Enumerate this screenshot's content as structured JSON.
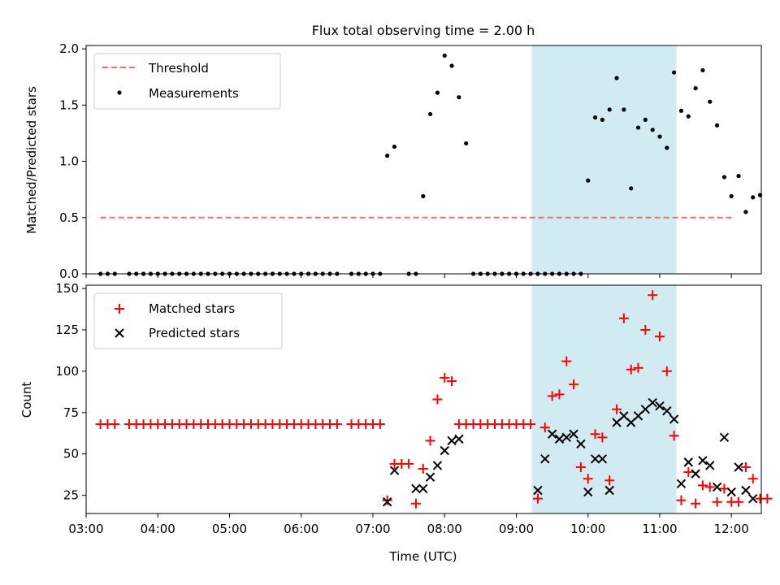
{
  "figure": {
    "title": "Flux total observing time = 2.00 h"
  },
  "colors": {
    "threshold": "#ff6b6b",
    "span": "#add8e6",
    "matched": "#ff0000",
    "predicted": "#000000",
    "measurement": "#000000"
  },
  "chart_data": [
    {
      "type": "scatter",
      "ylabel": "Matched/Predicted stars",
      "xlim": [
        "03:00",
        "12:25"
      ],
      "ylim": [
        0,
        2.03
      ],
      "yticks": [
        "0.0",
        "0.5",
        "1.0",
        "1.5",
        "2.0"
      ],
      "legend": {
        "placement": "top-left",
        "entries": [
          "Threshold",
          "Measurements"
        ]
      },
      "highlight_span": [
        "09:13",
        "11:14"
      ],
      "threshold": {
        "name": "Threshold",
        "y": 0.5,
        "x": [
          "03:12",
          "12:00"
        ]
      },
      "series": [
        {
          "name": "Measurements",
          "points": [
            [
              "03:12",
              0
            ],
            [
              "03:18",
              0
            ],
            [
              "03:24",
              0
            ],
            [
              "03:36",
              0
            ],
            [
              "03:42",
              0
            ],
            [
              "03:48",
              0
            ],
            [
              "03:54",
              0
            ],
            [
              "04:00",
              0
            ],
            [
              "04:06",
              0
            ],
            [
              "04:12",
              0
            ],
            [
              "04:18",
              0
            ],
            [
              "04:24",
              0
            ],
            [
              "04:30",
              0
            ],
            [
              "04:36",
              0
            ],
            [
              "04:42",
              0
            ],
            [
              "04:48",
              0
            ],
            [
              "04:54",
              0
            ],
            [
              "05:00",
              0
            ],
            [
              "05:06",
              0
            ],
            [
              "05:12",
              0
            ],
            [
              "05:18",
              0
            ],
            [
              "05:24",
              0
            ],
            [
              "05:30",
              0
            ],
            [
              "05:36",
              0
            ],
            [
              "05:42",
              0
            ],
            [
              "05:48",
              0
            ],
            [
              "05:54",
              0
            ],
            [
              "06:00",
              0
            ],
            [
              "06:06",
              0
            ],
            [
              "06:12",
              0
            ],
            [
              "06:18",
              0
            ],
            [
              "06:24",
              0
            ],
            [
              "06:30",
              0
            ],
            [
              "06:42",
              0
            ],
            [
              "06:48",
              0
            ],
            [
              "06:54",
              0
            ],
            [
              "07:00",
              0
            ],
            [
              "07:06",
              0
            ],
            [
              "07:12",
              1.05
            ],
            [
              "07:18",
              1.13
            ],
            [
              "07:30",
              0
            ],
            [
              "07:36",
              0
            ],
            [
              "07:42",
              0.69
            ],
            [
              "07:48",
              1.42
            ],
            [
              "07:54",
              1.61
            ],
            [
              "08:00",
              1.94
            ],
            [
              "08:06",
              1.85
            ],
            [
              "08:12",
              1.57
            ],
            [
              "08:18",
              1.16
            ],
            [
              "08:24",
              0
            ],
            [
              "08:30",
              0
            ],
            [
              "08:36",
              0
            ],
            [
              "08:42",
              0
            ],
            [
              "08:48",
              0
            ],
            [
              "08:54",
              0
            ],
            [
              "09:00",
              0
            ],
            [
              "09:06",
              0
            ],
            [
              "09:12",
              0
            ],
            [
              "09:18",
              0
            ],
            [
              "09:24",
              0
            ],
            [
              "09:30",
              0
            ],
            [
              "09:36",
              0
            ],
            [
              "09:42",
              0
            ],
            [
              "09:48",
              0
            ],
            [
              "09:54",
              0
            ],
            [
              "10:00",
              0.83
            ],
            [
              "10:06",
              1.39
            ],
            [
              "10:12",
              1.37
            ],
            [
              "10:18",
              1.46
            ],
            [
              "10:24",
              1.74
            ],
            [
              "10:30",
              1.46
            ],
            [
              "10:36",
              0.76
            ],
            [
              "10:42",
              1.3
            ],
            [
              "10:48",
              1.37
            ],
            [
              "10:54",
              1.28
            ],
            [
              "11:00",
              1.22
            ],
            [
              "11:06",
              1.12
            ],
            [
              "11:12",
              1.79
            ],
            [
              "11:18",
              1.45
            ],
            [
              "11:24",
              1.4
            ],
            [
              "11:30",
              1.65
            ],
            [
              "11:36",
              1.81
            ],
            [
              "11:42",
              1.53
            ],
            [
              "11:48",
              1.32
            ],
            [
              "11:54",
              0.86
            ],
            [
              "12:00",
              0.69
            ],
            [
              "12:06",
              0.87
            ],
            [
              "12:12",
              0.55
            ],
            [
              "12:18",
              0.68
            ],
            [
              "12:24",
              0.7
            ]
          ]
        }
      ]
    },
    {
      "type": "scatter",
      "xlabel": "Time (UTC)",
      "ylabel": "Count",
      "xlim": [
        "03:00",
        "12:25"
      ],
      "ylim": [
        14,
        152
      ],
      "yticks": [
        "25",
        "50",
        "75",
        "100",
        "125",
        "150"
      ],
      "xticks": [
        "03:00",
        "04:00",
        "05:00",
        "06:00",
        "07:00",
        "08:00",
        "09:00",
        "10:00",
        "11:00",
        "12:00"
      ],
      "legend": {
        "placement": "top-left",
        "entries": [
          "Matched stars",
          "Predicted stars"
        ]
      },
      "highlight_span": [
        "09:13",
        "11:14"
      ],
      "series": [
        {
          "name": "Matched stars",
          "marker": "plus",
          "points": [
            [
              "03:12",
              68
            ],
            [
              "03:18",
              68
            ],
            [
              "03:24",
              68
            ],
            [
              "03:36",
              68
            ],
            [
              "03:42",
              68
            ],
            [
              "03:48",
              68
            ],
            [
              "03:54",
              68
            ],
            [
              "04:00",
              68
            ],
            [
              "04:06",
              68
            ],
            [
              "04:12",
              68
            ],
            [
              "04:18",
              68
            ],
            [
              "04:24",
              68
            ],
            [
              "04:30",
              68
            ],
            [
              "04:36",
              68
            ],
            [
              "04:42",
              68
            ],
            [
              "04:48",
              68
            ],
            [
              "04:54",
              68
            ],
            [
              "05:00",
              68
            ],
            [
              "05:06",
              68
            ],
            [
              "05:12",
              68
            ],
            [
              "05:18",
              68
            ],
            [
              "05:24",
              68
            ],
            [
              "05:30",
              68
            ],
            [
              "05:36",
              68
            ],
            [
              "05:42",
              68
            ],
            [
              "05:48",
              68
            ],
            [
              "05:54",
              68
            ],
            [
              "06:00",
              68
            ],
            [
              "06:06",
              68
            ],
            [
              "06:12",
              68
            ],
            [
              "06:18",
              68
            ],
            [
              "06:24",
              68
            ],
            [
              "06:30",
              68
            ],
            [
              "06:42",
              68
            ],
            [
              "06:48",
              68
            ],
            [
              "06:54",
              68
            ],
            [
              "07:00",
              68
            ],
            [
              "07:06",
              68
            ],
            [
              "07:12",
              22
            ],
            [
              "07:18",
              44
            ],
            [
              "07:24",
              44
            ],
            [
              "07:30",
              44
            ],
            [
              "07:36",
              20
            ],
            [
              "07:42",
              41
            ],
            [
              "07:48",
              58
            ],
            [
              "07:54",
              83
            ],
            [
              "08:00",
              96
            ],
            [
              "08:06",
              94
            ],
            [
              "08:12",
              68
            ],
            [
              "08:18",
              68
            ],
            [
              "08:24",
              68
            ],
            [
              "08:30",
              68
            ],
            [
              "08:36",
              68
            ],
            [
              "08:42",
              68
            ],
            [
              "08:48",
              68
            ],
            [
              "08:54",
              68
            ],
            [
              "09:00",
              68
            ],
            [
              "09:06",
              68
            ],
            [
              "09:12",
              68
            ],
            [
              "09:18",
              23
            ],
            [
              "09:24",
              66
            ],
            [
              "09:30",
              85
            ],
            [
              "09:36",
              86
            ],
            [
              "09:42",
              106
            ],
            [
              "09:48",
              92
            ],
            [
              "09:54",
              42
            ],
            [
              "10:00",
              35
            ],
            [
              "10:06",
              62
            ],
            [
              "10:12",
              60
            ],
            [
              "10:18",
              34
            ],
            [
              "10:24",
              77
            ],
            [
              "10:30",
              132
            ],
            [
              "10:36",
              101
            ],
            [
              "10:42",
              102
            ],
            [
              "10:48",
              125
            ],
            [
              "10:54",
              146
            ],
            [
              "11:00",
              121
            ],
            [
              "11:06",
              100
            ],
            [
              "11:12",
              61
            ],
            [
              "11:18",
              22
            ],
            [
              "11:24",
              39
            ],
            [
              "11:30",
              20
            ],
            [
              "11:36",
              31
            ],
            [
              "11:42",
              30
            ],
            [
              "11:48",
              21
            ],
            [
              "11:54",
              29
            ],
            [
              "12:00",
              21
            ],
            [
              "12:06",
              21
            ],
            [
              "12:12",
              42
            ],
            [
              "12:18",
              35
            ],
            [
              "12:24",
              23
            ],
            [
              "12:30",
              23
            ]
          ]
        },
        {
          "name": "Predicted stars",
          "marker": "x",
          "points": [
            [
              "07:12",
              21
            ],
            [
              "07:18",
              40
            ],
            [
              "07:36",
              29
            ],
            [
              "07:42",
              29
            ],
            [
              "07:48",
              36
            ],
            [
              "07:54",
              43
            ],
            [
              "08:00",
              52
            ],
            [
              "08:06",
              58
            ],
            [
              "08:12",
              59
            ],
            [
              "09:18",
              28
            ],
            [
              "09:24",
              47
            ],
            [
              "09:30",
              62
            ],
            [
              "09:36",
              59
            ],
            [
              "09:42",
              60
            ],
            [
              "09:48",
              62
            ],
            [
              "09:54",
              56
            ],
            [
              "10:00",
              27
            ],
            [
              "10:06",
              47
            ],
            [
              "10:12",
              47
            ],
            [
              "10:18",
              28
            ],
            [
              "10:24",
              69
            ],
            [
              "10:30",
              73
            ],
            [
              "10:36",
              69
            ],
            [
              "10:42",
              73
            ],
            [
              "10:48",
              77
            ],
            [
              "10:54",
              81
            ],
            [
              "11:00",
              79
            ],
            [
              "11:06",
              76
            ],
            [
              "11:12",
              71
            ],
            [
              "11:18",
              32
            ],
            [
              "11:24",
              45
            ],
            [
              "11:30",
              38
            ],
            [
              "11:36",
              46
            ],
            [
              "11:42",
              43
            ],
            [
              "11:48",
              30
            ],
            [
              "11:54",
              60
            ],
            [
              "12:00",
              27
            ],
            [
              "12:06",
              42
            ],
            [
              "12:12",
              28
            ],
            [
              "12:18",
              23
            ]
          ]
        }
      ]
    }
  ]
}
